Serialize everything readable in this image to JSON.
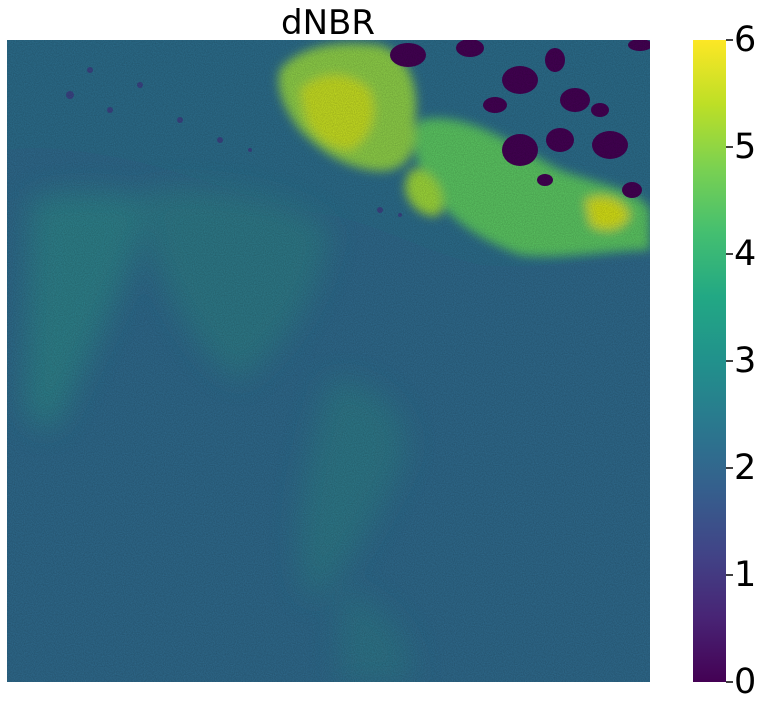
{
  "chart_data": {
    "type": "heatmap",
    "title": "dNBR",
    "xlabel": "",
    "ylabel": "",
    "axes_visible": false,
    "grid": false,
    "colormap": "viridis",
    "colorbar": {
      "placement": "right",
      "range": [
        0,
        6
      ],
      "ticks": [
        0,
        1,
        2,
        3,
        4,
        5,
        6
      ],
      "tick_labels": [
        "0",
        "1",
        "2",
        "3",
        "4",
        "5",
        "6"
      ]
    },
    "image_summary": {
      "background_value": 2.2,
      "description_regions": [
        {
          "area": "ocean (most of the image)",
          "approx_value": 2.2
        },
        {
          "area": "light haze streaks over ocean",
          "approx_value": 2.7
        },
        {
          "area": "burned land, upper center and right",
          "approx_value": 5.2
        },
        {
          "area": "unburned/cloud patches, top right",
          "approx_value": 0.2
        }
      ]
    }
  }
}
